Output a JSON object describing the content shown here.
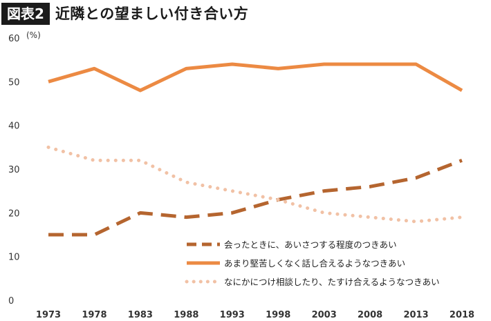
{
  "header": {
    "badge": "図表2",
    "title": "近隣との望ましい付き合い方"
  },
  "chart_data": {
    "type": "line",
    "title": "近隣との望ましい付き合い方",
    "ylabel": "(%)",
    "xlabel": "",
    "ylim": [
      0,
      60
    ],
    "yticks": [
      "0",
      "10",
      "20",
      "30",
      "40",
      "50",
      "60"
    ],
    "categories": [
      "1973",
      "1978",
      "1983",
      "1988",
      "1993",
      "1998",
      "2003",
      "2008",
      "2013",
      "2018"
    ],
    "grid": false,
    "legend_position": "bottom-right",
    "series": [
      {
        "name": "会ったときに、あいさつする程度のつきあい",
        "values": [
          15,
          15,
          20,
          19,
          20,
          23,
          25,
          26,
          28,
          32
        ],
        "color": "#b5652f",
        "style": "dashed"
      },
      {
        "name": "あまり堅苦しくなく話し合えるようなつきあい",
        "values": [
          50,
          53,
          48,
          53,
          54,
          53,
          54,
          54,
          54,
          48
        ],
        "color": "#ec8a43",
        "style": "solid"
      },
      {
        "name": "なにかにつけ相談したり、たすけ合えるようなつきあい",
        "values": [
          35,
          32,
          32,
          27,
          25,
          23,
          20,
          19,
          18,
          19
        ],
        "color": "#f1c1a5",
        "style": "dotted"
      }
    ]
  }
}
